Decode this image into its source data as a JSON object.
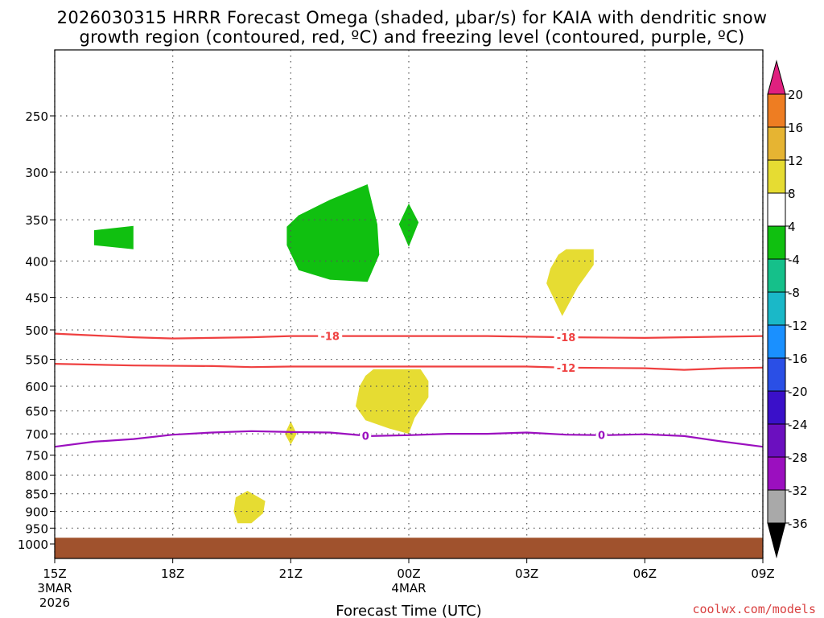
{
  "title": {
    "line1": "2026030315 HRRR Forecast Omega (shaded, μbar/s) for KAIA with dendritic snow",
    "line2": "growth region (contoured, red, ºC) and freezing level (contoured, purple, ºC)"
  },
  "credit": "coolwx.com/models",
  "credit_color": "#d94040",
  "chart_data": {
    "type": "time-height cross-section",
    "xlabel": "Forecast Time (UTC)",
    "x_range_hours": [
      0,
      18
    ],
    "x_ticks": [
      {
        "hour": 0,
        "label": "15Z",
        "sub1": "3MAR",
        "sub2": "2026"
      },
      {
        "hour": 3,
        "label": "18Z",
        "sub1": "",
        "sub2": ""
      },
      {
        "hour": 6,
        "label": "21Z",
        "sub1": "",
        "sub2": ""
      },
      {
        "hour": 9,
        "label": "00Z",
        "sub1": "4MAR",
        "sub2": ""
      },
      {
        "hour": 12,
        "label": "03Z",
        "sub1": "",
        "sub2": ""
      },
      {
        "hour": 15,
        "label": "06Z",
        "sub1": "",
        "sub2": ""
      },
      {
        "hour": 18,
        "label": "09Z",
        "sub1": "",
        "sub2": ""
      }
    ],
    "y_axis": "pressure (hPa), log scale",
    "y_range": [
      1035,
      200
    ],
    "y_tick_labels": [
      250,
      300,
      350,
      400,
      450,
      500,
      550,
      600,
      650,
      700,
      750,
      800,
      850,
      900,
      950,
      1000
    ],
    "grid_lines": [
      250,
      300,
      350,
      400,
      450,
      500,
      550,
      600,
      650,
      700,
      750,
      800,
      850,
      900,
      950
    ],
    "ground_top_pressure": 980,
    "ground_color": "#a0522d",
    "colorbar": {
      "bounds": [
        -36,
        -32,
        -28,
        -24,
        -20,
        -16,
        -12,
        -8,
        -4,
        4,
        8,
        12,
        16,
        20
      ],
      "colors": [
        "#a9a9a9",
        "#9b0fbf",
        "#6b0fbf",
        "#3a10c9",
        "#2a4fe6",
        "#1a90ff",
        "#1ab8c8",
        "#15c08a",
        "#10c010",
        "#ffffff",
        "#e6dc32",
        "#e6b432",
        "#ee7d22",
        "#ef3a3a"
      ],
      "under_color": "#000000",
      "over_color": "#e0207f",
      "labels": [
        "-36",
        "-32",
        "-28",
        "-24",
        "-20",
        "-16",
        "-12",
        "-8",
        "-4",
        "4",
        "8",
        "12",
        "16",
        "20"
      ]
    },
    "shaded_regions": [
      {
        "name": "omega-green-1",
        "range": "-8 to -4",
        "color": "#10c010",
        "points": [
          [
            1.0,
            362
          ],
          [
            2.0,
            357
          ],
          [
            2.0,
            385
          ],
          [
            1.0,
            380
          ]
        ]
      },
      {
        "name": "omega-green-2",
        "range": "-8 to -4",
        "color": "#10c010",
        "points": [
          [
            5.9,
            358
          ],
          [
            6.2,
            345
          ],
          [
            7.0,
            328
          ],
          [
            7.95,
            312
          ],
          [
            8.2,
            355
          ],
          [
            8.25,
            392
          ],
          [
            7.95,
            428
          ],
          [
            7.0,
            425
          ],
          [
            6.2,
            412
          ],
          [
            5.9,
            380
          ]
        ]
      },
      {
        "name": "omega-green-3",
        "range": "-8 to -4",
        "color": "#10c010",
        "points": [
          [
            9.0,
            332
          ],
          [
            9.25,
            353
          ],
          [
            9.0,
            382
          ],
          [
            8.75,
            355
          ]
        ]
      },
      {
        "name": "omega-yellow-1",
        "range": "4 to 8",
        "color": "#e6dc32",
        "points": [
          [
            12.6,
            410
          ],
          [
            12.8,
            392
          ],
          [
            13.0,
            385
          ],
          [
            13.7,
            385
          ],
          [
            13.7,
            405
          ],
          [
            13.3,
            435
          ],
          [
            12.9,
            478
          ],
          [
            12.5,
            430
          ]
        ]
      },
      {
        "name": "omega-yellow-2",
        "range": "4 to 8",
        "color": "#e6dc32",
        "points": [
          [
            7.9,
            580
          ],
          [
            8.1,
            568
          ],
          [
            9.3,
            568
          ],
          [
            9.5,
            590
          ],
          [
            9.5,
            622
          ],
          [
            9.15,
            665
          ],
          [
            9.0,
            700
          ],
          [
            8.5,
            688
          ],
          [
            7.9,
            670
          ],
          [
            7.65,
            640
          ],
          [
            7.75,
            600
          ]
        ]
      },
      {
        "name": "omega-yellow-3",
        "range": "4 to 8",
        "color": "#e6dc32",
        "points": [
          [
            6.0,
            672
          ],
          [
            6.15,
            700
          ],
          [
            6.0,
            725
          ],
          [
            5.85,
            700
          ]
        ]
      },
      {
        "name": "omega-yellow-4",
        "range": "4 to 8",
        "color": "#e6dc32",
        "points": [
          [
            4.6,
            860
          ],
          [
            4.9,
            842
          ],
          [
            5.35,
            870
          ],
          [
            5.3,
            905
          ],
          [
            5.0,
            935
          ],
          [
            4.65,
            935
          ],
          [
            4.55,
            900
          ]
        ]
      }
    ],
    "contours": [
      {
        "name": "dgz-minus18",
        "value": -18,
        "color": "#ef4040",
        "label": "-18",
        "label_hours": [
          7.0,
          13.0
        ],
        "points": [
          [
            0,
            506
          ],
          [
            2,
            512
          ],
          [
            3,
            514
          ],
          [
            5,
            512
          ],
          [
            6,
            510
          ],
          [
            7,
            510
          ],
          [
            9,
            510
          ],
          [
            11,
            510
          ],
          [
            12,
            511
          ],
          [
            13,
            512
          ],
          [
            15,
            513
          ],
          [
            16,
            512
          ],
          [
            18,
            510
          ]
        ]
      },
      {
        "name": "dgz-minus12",
        "value": -12,
        "color": "#ef4040",
        "label": "-12",
        "label_hours": [
          13.0
        ],
        "points": [
          [
            0,
            558
          ],
          [
            2,
            561
          ],
          [
            4,
            562
          ],
          [
            5,
            564
          ],
          [
            6,
            563
          ],
          [
            8,
            563
          ],
          [
            10,
            563
          ],
          [
            12,
            563
          ],
          [
            13,
            565
          ],
          [
            15,
            566
          ],
          [
            16,
            569
          ],
          [
            17,
            566
          ],
          [
            18,
            565
          ]
        ]
      },
      {
        "name": "freezing-level-0",
        "value": 0,
        "color": "#9b0fbf",
        "label": "0",
        "label_hours": [
          7.9,
          13.9
        ],
        "points": [
          [
            0,
            730
          ],
          [
            1,
            718
          ],
          [
            2,
            712
          ],
          [
            3,
            702
          ],
          [
            4,
            697
          ],
          [
            5,
            694
          ],
          [
            6,
            696
          ],
          [
            7,
            697
          ],
          [
            8,
            705
          ],
          [
            9,
            703
          ],
          [
            10,
            700
          ],
          [
            11,
            700
          ],
          [
            12,
            697
          ],
          [
            13,
            702
          ],
          [
            14,
            703
          ],
          [
            15,
            701
          ],
          [
            16,
            705
          ],
          [
            17,
            718
          ],
          [
            18,
            730
          ]
        ]
      }
    ]
  }
}
